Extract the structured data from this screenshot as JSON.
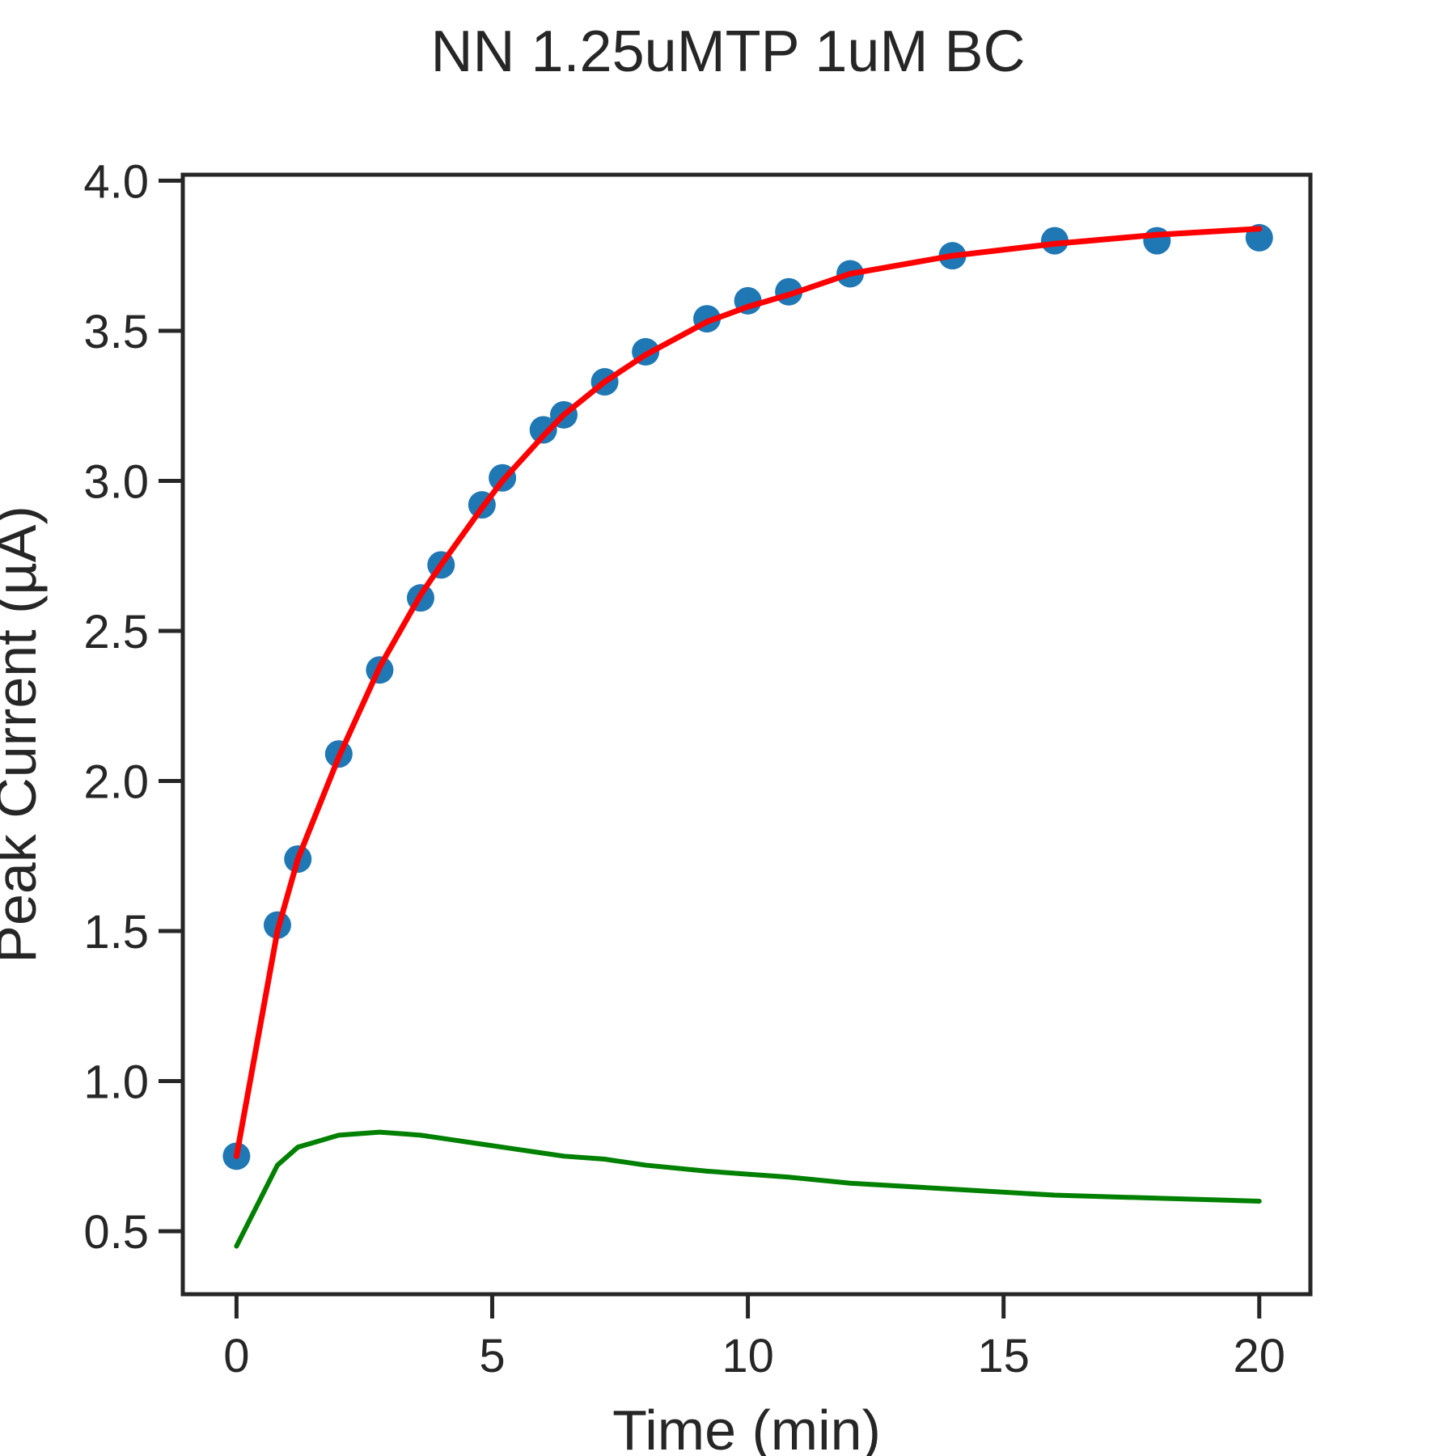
{
  "chart_data": {
    "type": "scatter",
    "title": "NN 1.25uMTP 1uM BC",
    "xlabel": "Time (min)",
    "ylabel": "Peak Current (µA)",
    "xlim": [
      -1.05,
      21.0
    ],
    "ylim": [
      0.29,
      4.02
    ],
    "xticks": [
      0,
      5,
      10,
      15,
      20
    ],
    "xtick_labels": [
      "0",
      "5",
      "10",
      "15",
      "20"
    ],
    "yticks": [
      0.5,
      1.0,
      1.5,
      2.0,
      2.5,
      3.0,
      3.5,
      4.0
    ],
    "ytick_labels": [
      "0.5",
      "1.0",
      "1.5",
      "2.0",
      "2.5",
      "3.0",
      "3.5",
      "4.0"
    ],
    "grid": false,
    "colors": {
      "points": "#1f77b4",
      "fit": "#ff0000",
      "residual": "#008000",
      "axes": "#262626"
    },
    "points": {
      "x": [
        0,
        0.8,
        1.2,
        2.0,
        2.8,
        3.6,
        4.0,
        4.8,
        5.2,
        6.0,
        6.4,
        7.2,
        8.0,
        9.2,
        10.0,
        10.8,
        12.0,
        14.0,
        16.0,
        18.0,
        20.0
      ],
      "y": [
        0.75,
        1.52,
        1.74,
        2.09,
        2.37,
        2.61,
        2.72,
        2.92,
        3.01,
        3.17,
        3.22,
        3.33,
        3.43,
        3.54,
        3.6,
        3.63,
        3.69,
        3.75,
        3.8,
        3.8,
        3.81
      ]
    },
    "series": [
      {
        "x": [
          0,
          0.8,
          1.2,
          2.0,
          2.8,
          3.6,
          4.0,
          4.8,
          5.2,
          6.0,
          6.4,
          7.2,
          8.0,
          9.2,
          10.0,
          10.8,
          12.0,
          14.0,
          16.0,
          18.0,
          20.0
        ],
        "y": [
          0.75,
          1.5,
          1.74,
          2.08,
          2.38,
          2.62,
          2.72,
          2.91,
          3.0,
          3.15,
          3.22,
          3.33,
          3.42,
          3.53,
          3.58,
          3.62,
          3.69,
          3.75,
          3.79,
          3.82,
          3.84
        ]
      },
      {
        "x": [
          0,
          0.8,
          1.2,
          2.0,
          2.8,
          3.6,
          4.0,
          4.8,
          5.2,
          6.0,
          6.4,
          7.2,
          8.0,
          9.2,
          10.0,
          10.8,
          12.0,
          14.0,
          16.0,
          18.0,
          20.0
        ],
        "y": [
          0.45,
          0.72,
          0.78,
          0.82,
          0.83,
          0.82,
          0.81,
          0.79,
          0.78,
          0.76,
          0.75,
          0.74,
          0.72,
          0.7,
          0.69,
          0.68,
          0.66,
          0.64,
          0.62,
          0.61,
          0.6
        ]
      }
    ]
  }
}
